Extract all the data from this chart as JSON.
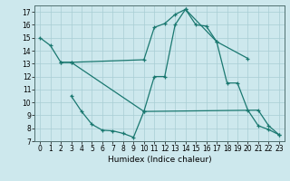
{
  "bg_color": "#cde8ed",
  "grid_color": "#a8cdd4",
  "line_color": "#1a7870",
  "xlabel": "Humidex (Indice chaleur)",
  "xlim": [
    -0.5,
    23.5
  ],
  "ylim": [
    7,
    17.5
  ],
  "xticks": [
    0,
    1,
    2,
    3,
    4,
    5,
    6,
    7,
    8,
    9,
    10,
    11,
    12,
    13,
    14,
    15,
    16,
    17,
    18,
    19,
    20,
    21,
    22,
    23
  ],
  "yticks": [
    7,
    8,
    9,
    10,
    11,
    12,
    13,
    14,
    15,
    16,
    17
  ],
  "line1_x": [
    0,
    1,
    2,
    3,
    10,
    11,
    12,
    13,
    14,
    15,
    16,
    17,
    20
  ],
  "line1_y": [
    15,
    14.4,
    13.1,
    13.1,
    13.3,
    15.8,
    16.1,
    16.8,
    17.2,
    16.0,
    15.9,
    14.7,
    13.4
  ],
  "line2_x": [
    2,
    3,
    10,
    11,
    12,
    13,
    14,
    17,
    18,
    19,
    20,
    21,
    22,
    23
  ],
  "line2_y": [
    13.1,
    13.1,
    9.3,
    12.0,
    12.0,
    16.0,
    17.2,
    14.7,
    11.5,
    11.5,
    9.4,
    8.2,
    7.9,
    7.5
  ],
  "line3_x": [
    3,
    4,
    5,
    6,
    7,
    8,
    9,
    10,
    21,
    22,
    23
  ],
  "line3_y": [
    10.5,
    9.3,
    8.3,
    7.85,
    7.8,
    7.6,
    7.3,
    9.3,
    9.4,
    8.2,
    7.5
  ],
  "tick_fontsize": 5.5,
  "xlabel_fontsize": 6.5,
  "linewidth": 0.9,
  "markersize": 3.5
}
